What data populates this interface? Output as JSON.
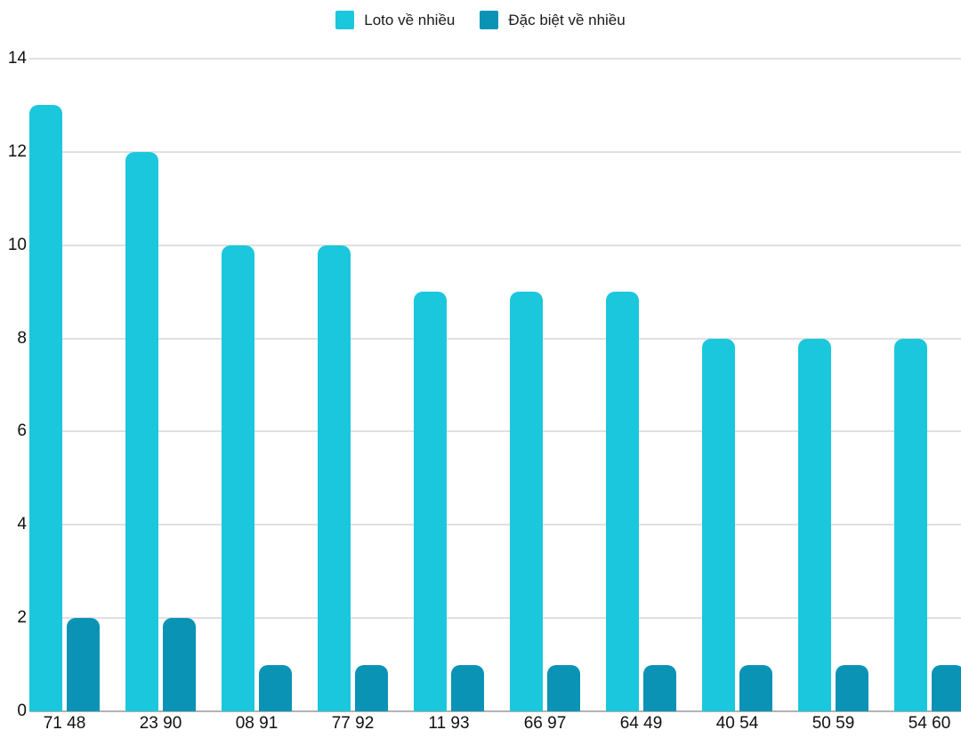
{
  "chart_data": {
    "type": "bar",
    "title": "",
    "xlabel": "",
    "ylabel": "",
    "categories": [
      "71 48",
      "23 90",
      "08 91",
      "77 92",
      "11 93",
      "66 97",
      "64 49",
      "40 54",
      "50 59",
      "54 60"
    ],
    "series": [
      {
        "name": "Loto về nhiều",
        "color": "#1bc7dc",
        "values": [
          13,
          12,
          10,
          10,
          9,
          9,
          9,
          8,
          8,
          8
        ]
      },
      {
        "name": "Đặc biệt về nhiều",
        "color": "#0a93b5",
        "values": [
          2,
          2,
          1,
          1,
          1,
          1,
          1,
          1,
          1,
          1
        ]
      }
    ],
    "ylim": [
      0,
      14
    ],
    "yticks": [
      0,
      2,
      4,
      6,
      8,
      10,
      12,
      14
    ],
    "grid": true,
    "legend_position": "top",
    "colors": {
      "gridline": "#e0e0e0",
      "axis_line": "#b3b3b3",
      "label": "#111111",
      "background": "#ffffff"
    }
  }
}
